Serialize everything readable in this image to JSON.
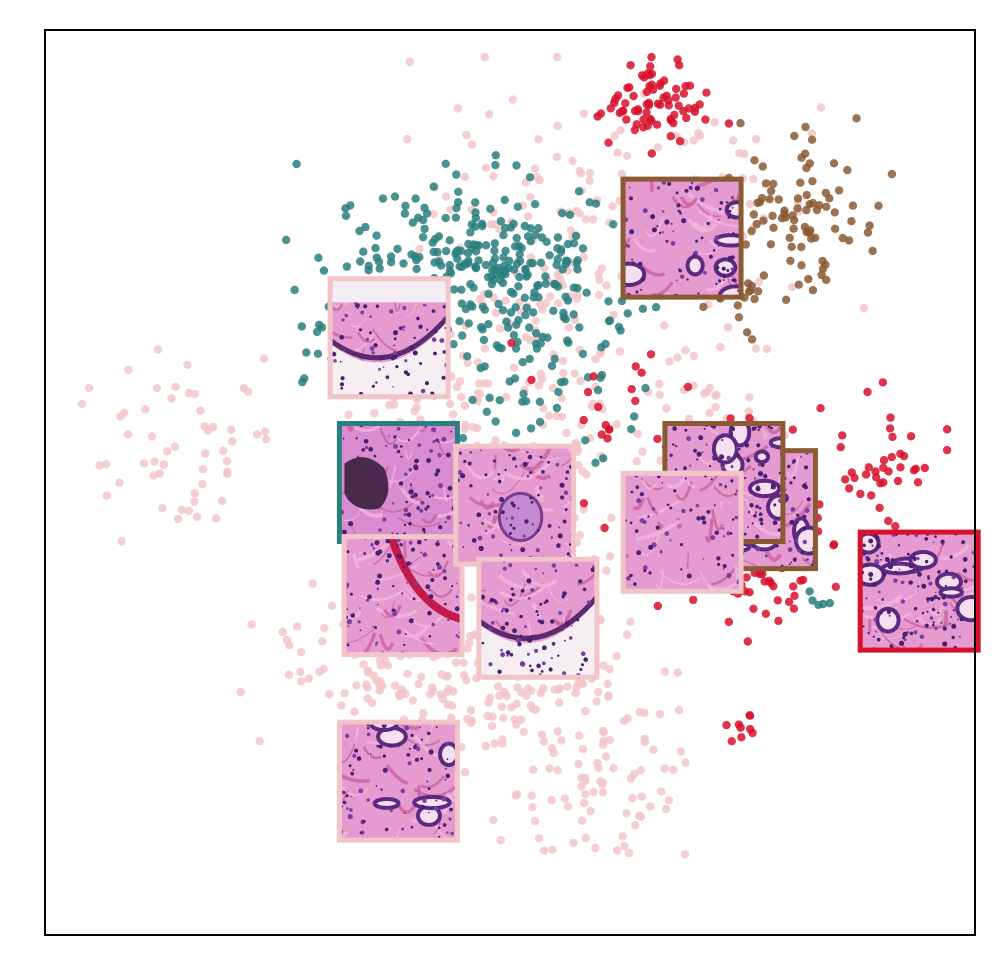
{
  "chart_data": {
    "type": "scatter",
    "title": "",
    "xlabel": "",
    "ylabel": "",
    "xlim": [
      0,
      100
    ],
    "ylim": [
      0,
      100
    ],
    "grid": false,
    "legend": "none",
    "axes_ticks": "none",
    "series": [
      {
        "color": "#f2c6c8",
        "clusters": [
          {
            "cx": 14,
            "cy": 54,
            "sx": 4.5,
            "sy": 5,
            "n": 55
          },
          {
            "cx": 38,
            "cy": 32,
            "sx": 7,
            "sy": 4,
            "n": 90
          },
          {
            "cx": 50,
            "cy": 26,
            "sx": 9,
            "sy": 5,
            "n": 160
          },
          {
            "cx": 60,
            "cy": 16,
            "sx": 6,
            "sy": 4,
            "n": 70
          },
          {
            "cx": 50,
            "cy": 50,
            "sx": 8,
            "sy": 7,
            "n": 160
          },
          {
            "cx": 53,
            "cy": 75,
            "sx": 7,
            "sy": 9,
            "n": 150
          },
          {
            "cx": 72,
            "cy": 80,
            "sx": 5,
            "sy": 5,
            "n": 50
          },
          {
            "cx": 73,
            "cy": 55,
            "sx": 4,
            "sy": 5,
            "n": 55
          },
          {
            "cx": 40,
            "cy": 60,
            "sx": 4,
            "sy": 3,
            "n": 40
          }
        ]
      },
      {
        "color": "#2a7f7f",
        "clusters": [
          {
            "cx": 45,
            "cy": 74,
            "sx": 7,
            "sy": 4.5,
            "n": 210
          },
          {
            "cx": 54,
            "cy": 68,
            "sx": 5,
            "sy": 7,
            "n": 120
          },
          {
            "cx": 31,
            "cy": 64,
            "sx": 3,
            "sy": 2.5,
            "n": 25
          },
          {
            "cx": 83,
            "cy": 37,
            "sx": 0.8,
            "sy": 1,
            "n": 5
          }
        ]
      },
      {
        "color": "#d8102c",
        "clusters": [
          {
            "cx": 65,
            "cy": 92,
            "sx": 3,
            "sy": 2.5,
            "n": 75
          },
          {
            "cx": 78,
            "cy": 48,
            "sx": 3.5,
            "sy": 5,
            "n": 80
          },
          {
            "cx": 91,
            "cy": 53,
            "sx": 2.5,
            "sy": 4,
            "n": 35
          },
          {
            "cx": 77,
            "cy": 38,
            "sx": 3,
            "sy": 2.5,
            "n": 30
          },
          {
            "cx": 75,
            "cy": 23,
            "sx": 0.8,
            "sy": 1.5,
            "n": 9
          },
          {
            "cx": 60,
            "cy": 57,
            "sx": 6,
            "sy": 6,
            "n": 25
          }
        ]
      },
      {
        "color": "#8a5a34",
        "clusters": [
          {
            "cx": 82,
            "cy": 80,
            "sx": 3.5,
            "sy": 4,
            "n": 85
          },
          {
            "cx": 74,
            "cy": 70,
            "sx": 3,
            "sy": 2,
            "n": 15
          }
        ]
      }
    ],
    "thumbnails": [
      {
        "x": 68.5,
        "y": 77,
        "border": "#8a5a34",
        "style": "glands-cluster"
      },
      {
        "x": 37,
        "y": 66,
        "border": "#f2c6c8",
        "style": "duct-lumen"
      },
      {
        "x": 76.5,
        "y": 47,
        "border": "#8a5a34",
        "style": "glands-dense"
      },
      {
        "x": 73,
        "y": 50,
        "border": "#8a5a34",
        "style": "glands-dense"
      },
      {
        "x": 38,
        "y": 50,
        "border": "#2a7f7f",
        "style": "necrosis"
      },
      {
        "x": 38.5,
        "y": 37.5,
        "border": "#f2c6c8",
        "style": "stroma-vessel"
      },
      {
        "x": 50.5,
        "y": 47.5,
        "border": "#f2c6c8",
        "style": "nerve"
      },
      {
        "x": 68.5,
        "y": 44.5,
        "border": "#f2c6c8",
        "style": "stroma"
      },
      {
        "x": 53,
        "y": 35,
        "border": "#f2c6c8",
        "style": "duct-lumen"
      },
      {
        "x": 94,
        "y": 38,
        "border": "#d8102c",
        "style": "glands-dense"
      },
      {
        "x": 38,
        "y": 17,
        "border": "#f2c6c8",
        "style": "glands-cluster"
      }
    ]
  }
}
